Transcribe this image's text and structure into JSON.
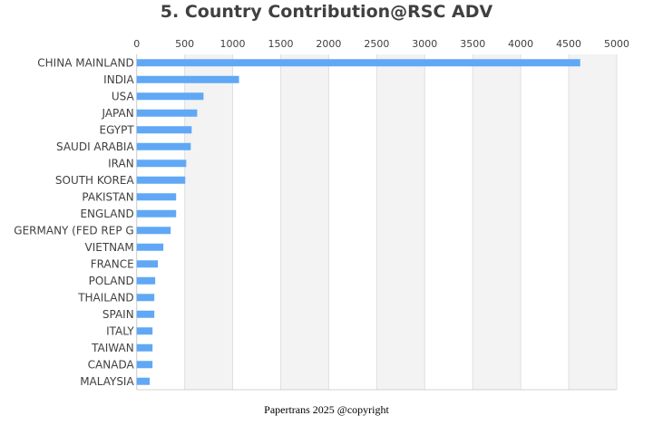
{
  "chart_data": {
    "type": "bar",
    "orientation": "horizontal",
    "title": "5. Country Contribution@RSC ADV",
    "xlim": [
      0,
      5000
    ],
    "xticks": [
      0,
      500,
      1000,
      1500,
      2000,
      2500,
      3000,
      3500,
      4000,
      4500,
      5000
    ],
    "xaxis_position": "top",
    "grid": true,
    "bar_color": "#60a8f5",
    "categories": [
      "CHINA MAINLAND",
      "INDIA",
      "USA",
      "JAPAN",
      "EGYPT",
      "SAUDI ARABIA",
      "IRAN",
      "SOUTH KOREA",
      "PAKISTAN",
      "ENGLAND",
      "GERMANY (FED REP G",
      "VIETNAM",
      "FRANCE",
      "POLAND",
      "THAILAND",
      "SPAIN",
      "ITALY",
      "TAIWAN",
      "CANADA",
      "MALAYSIA"
    ],
    "values": [
      4620,
      1066,
      696,
      630,
      573,
      563,
      516,
      506,
      411,
      411,
      354,
      278,
      221,
      193,
      184,
      184,
      165,
      165,
      165,
      136
    ]
  },
  "footer": "Papertrans 2025 @copyright"
}
